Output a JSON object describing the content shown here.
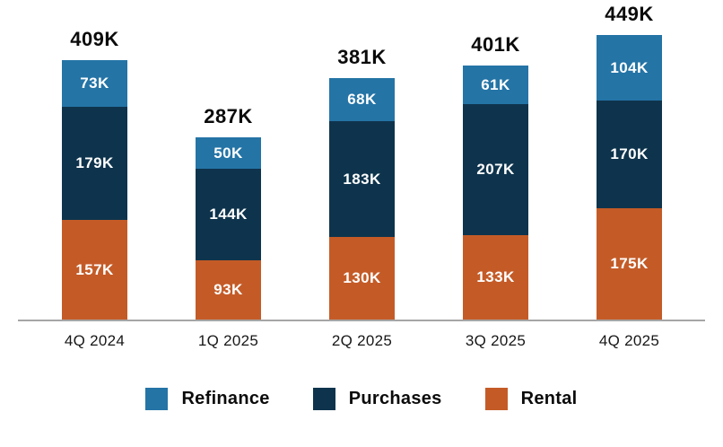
{
  "chart_data": {
    "type": "bar",
    "stacked": true,
    "title": "",
    "xlabel": "",
    "ylabel": "",
    "value_suffix": "K",
    "categories": [
      "4Q 2024",
      "1Q 2025",
      "2Q 2025",
      "3Q 2025",
      "4Q 2025"
    ],
    "series": [
      {
        "name": "Refinance",
        "color": "#2474a6",
        "values": [
          73,
          50,
          68,
          61,
          104
        ]
      },
      {
        "name": "Purchases",
        "color": "#0e344d",
        "values": [
          179,
          144,
          183,
          207,
          170
        ]
      },
      {
        "name": "Rental",
        "color": "#c45b27",
        "values": [
          157,
          93,
          130,
          133,
          175
        ]
      }
    ],
    "totals": [
      409,
      287,
      381,
      401,
      449
    ],
    "ylim": [
      0,
      504
    ],
    "grid": false,
    "legend_position": "bottom",
    "axis_line_color": "#a6a6a6"
  }
}
